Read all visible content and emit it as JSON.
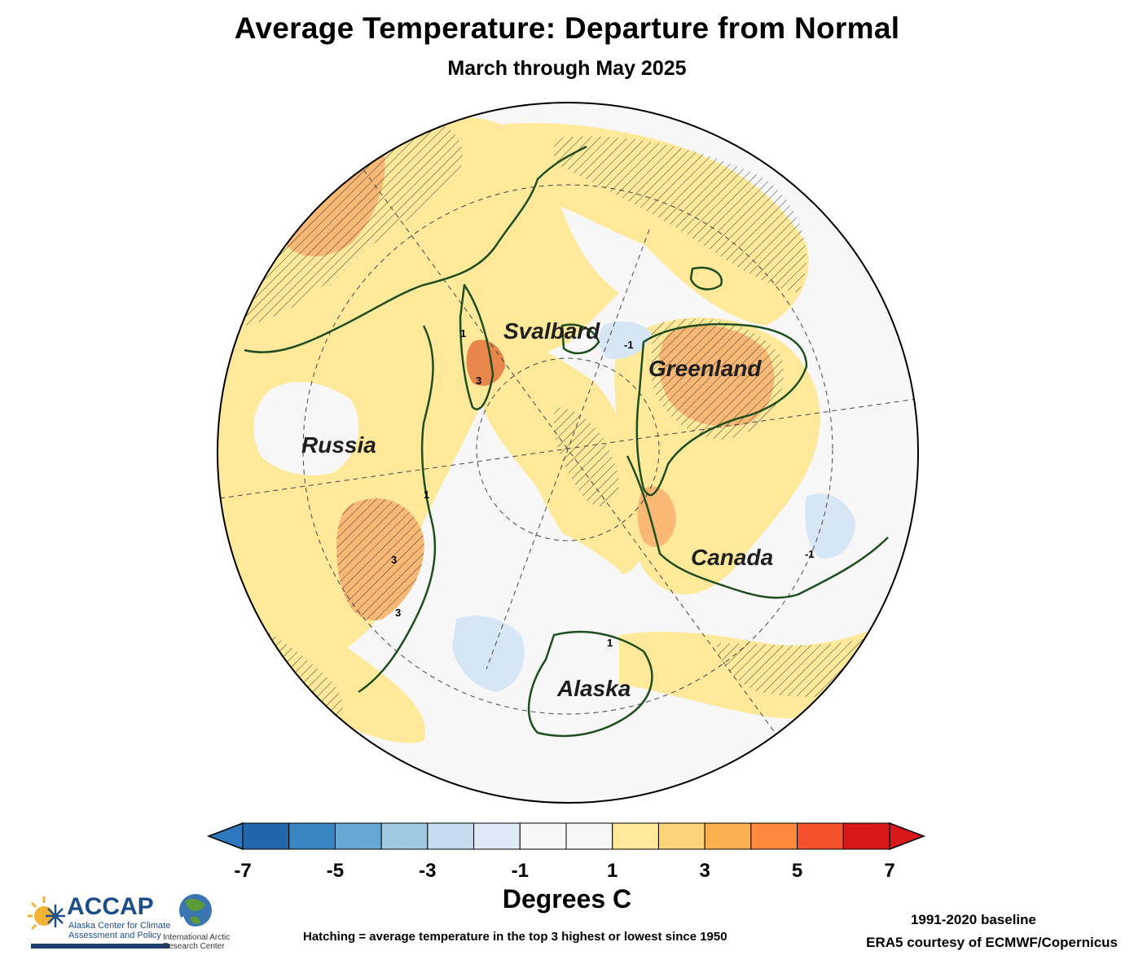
{
  "title": "Average Temperature: Departure from Normal",
  "subtitle": "March through May 2025",
  "regions": {
    "svalbard": "Svalbard",
    "greenland": "Greenland",
    "russia": "Russia",
    "canada": "Canada",
    "alaska": "Alaska"
  },
  "contour_labels": {
    "c1": "1",
    "c2": "3",
    "c3": "-1",
    "c4": "3",
    "c5": "1",
    "c6": "-1",
    "c7": "1",
    "c8": "3"
  },
  "colorbar": {
    "ticks": [
      "-7",
      "-5",
      "-3",
      "-1",
      "1",
      "3",
      "5",
      "7"
    ],
    "colors": [
      "#2166ac",
      "#3a86c3",
      "#67a7d3",
      "#9fcae2",
      "#c6dbef",
      "#deebf7",
      "#f7f7f7",
      "#f7f7f7",
      "#fee99b",
      "#fdd37a",
      "#fcb050",
      "#fb8a3c",
      "#f4502a",
      "#d7191c"
    ],
    "underflow_color": "#2f77bd",
    "overflow_color": "#d7191c",
    "units": "Degrees C"
  },
  "footer": {
    "hatching_note": "Hatching = average temperature in the top 3 highest or lowest since 1950",
    "baseline": "1991-2020 baseline",
    "credit": "ERA5 courtesy of ECMWF/Copernicus"
  },
  "logos": {
    "accap_name": "ACCAP",
    "accap_sub": "Alaska Center for Climate Assessment and Policy",
    "iarc_text": "International Arctic Research Center"
  },
  "colors": {
    "land_outline": "#1e4d1e",
    "anomaly_1_3": "#fee99b",
    "anomaly_3_5": "#f9b873",
    "anomaly_5_7": "#e8874b",
    "anomaly_neg": "#d6e6f5",
    "near_normal": "#f7f7f7"
  }
}
